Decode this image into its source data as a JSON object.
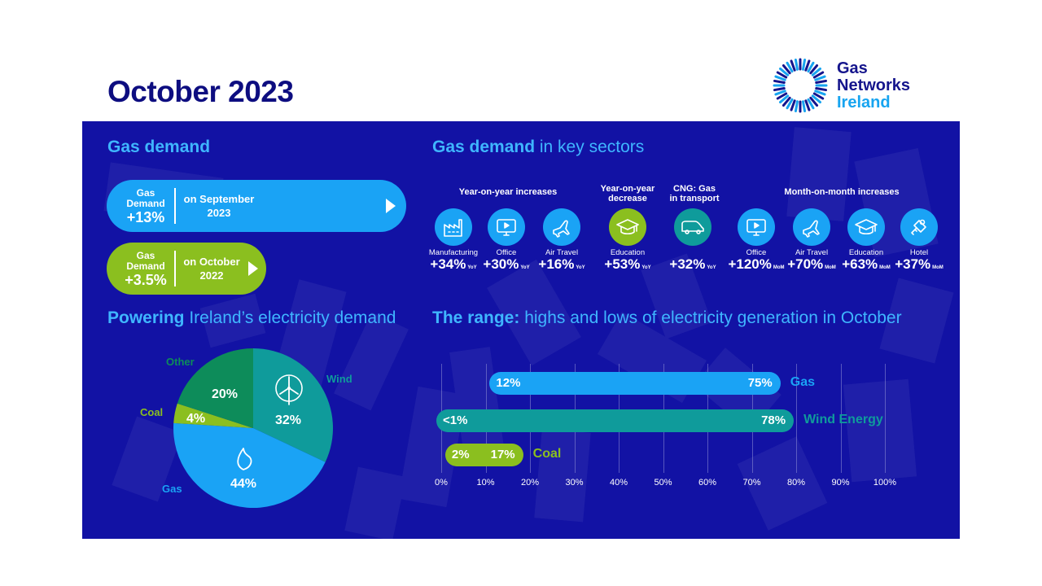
{
  "header": {
    "title": "October 2023"
  },
  "logo": {
    "line1": "Gas",
    "line2": "Networks",
    "line3": "Ireland"
  },
  "colors": {
    "gas": "#1aa3f5",
    "wind": "#0f9b9b",
    "coal": "#8bbf1f",
    "other": "#0d8c5a",
    "navy": "#1212a4",
    "heading": "#3fb6ff"
  },
  "gas_demand": {
    "title": "Gas demand",
    "pill1": {
      "label_top": "Gas",
      "label_mid": "Demand",
      "value": "+13%",
      "desc_line1": "on September",
      "desc_line2": "2023"
    },
    "pill2": {
      "label_top": "Gas",
      "label_mid": "Demand",
      "value": "+3.5%",
      "desc_line1": "on October",
      "desc_line2": "2022"
    }
  },
  "sectors": {
    "title_bold": "Gas demand",
    "title_light": " in key sectors",
    "group_yoy_inc": "Year-on-year increases",
    "group_yoy_dec_line1": "Year-on-year",
    "group_yoy_dec_line2": "decrease",
    "group_cng_line1": "CNG: Gas",
    "group_cng_line2": "in transport",
    "group_mom": "Month-on-month increases",
    "items": [
      {
        "name": "Manufacturing",
        "value": "+34%",
        "unit": "YoY",
        "icon": "factory-icon"
      },
      {
        "name": "Office",
        "value": "+30%",
        "unit": "YoY",
        "icon": "monitor-icon"
      },
      {
        "name": "Air Travel",
        "value": "+16%",
        "unit": "YoY",
        "icon": "plane-icon"
      },
      {
        "name": "Education",
        "value": "+53%",
        "unit": "YoY",
        "icon": "graduation-cap-icon"
      },
      {
        "name": "",
        "value": "+32%",
        "unit": "YoY",
        "icon": "van-icon"
      },
      {
        "name": "Office",
        "value": "+120%",
        "unit": "MoM",
        "icon": "monitor-icon"
      },
      {
        "name": "Air Travel",
        "value": "+70%",
        "unit": "MoM",
        "icon": "plane-icon"
      },
      {
        "name": "Education",
        "value": "+63%",
        "unit": "MoM",
        "icon": "graduation-cap-icon"
      },
      {
        "name": "Hotel",
        "value": "+37%",
        "unit": "MoM",
        "icon": "hotel-key-icon"
      }
    ]
  },
  "powering": {
    "title_bold": "Powering",
    "title_light": " Ireland’s electricity demand"
  },
  "range": {
    "title_bold": "The range:",
    "title_light": " highs and lows of electricity generation in October"
  },
  "chart_data": [
    {
      "type": "pie",
      "slices": [
        {
          "name": "Wind",
          "value": 32,
          "label": "32%",
          "color": "#0f9b9b"
        },
        {
          "name": "Gas",
          "value": 44,
          "label": "44%",
          "color": "#1aa3f5"
        },
        {
          "name": "Coal",
          "value": 4,
          "label": "4%",
          "color": "#8bbf1f"
        },
        {
          "name": "Other",
          "value": 20,
          "label": "20%",
          "color": "#0d8c5a"
        }
      ]
    },
    {
      "type": "bar",
      "orientation": "horizontal-range",
      "xlim": [
        0,
        100
      ],
      "ticks": [
        "0%",
        "10%",
        "20%",
        "30%",
        "40%",
        "50%",
        "60%",
        "70%",
        "80%",
        "90%",
        "100%"
      ],
      "series": [
        {
          "name": "Gas",
          "low": 12,
          "high": 75,
          "low_label": "12%",
          "high_label": "75%",
          "color": "#1aa3f5"
        },
        {
          "name": "Wind Energy",
          "low": 0,
          "high": 78,
          "low_label": "<1%",
          "high_label": "78%",
          "color": "#0f9b9b"
        },
        {
          "name": "Coal",
          "low": 2,
          "high": 17,
          "low_label": "2%",
          "high_label": "17%",
          "color": "#8bbf1f"
        }
      ]
    }
  ]
}
